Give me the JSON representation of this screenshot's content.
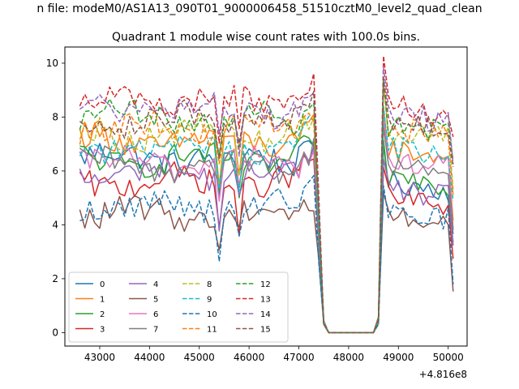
{
  "chart_data": {
    "type": "line",
    "suptitle": "n file: modeM0/AS1A13_090T01_9000006458_51510cztM0_level2_quad_clean",
    "title": "Quadrant 1 module wise count rates with 100.0s bins.",
    "xlabel": "",
    "ylabel": "",
    "x_offset_label": "+4.816e8",
    "xlim": [
      42300,
      50380
    ],
    "ylim": [
      -0.5,
      10.6
    ],
    "xticks": [
      43000,
      44000,
      45000,
      46000,
      47000,
      48000,
      49000,
      50000
    ],
    "xtick_labels": [
      "43000",
      "44000",
      "45000",
      "46000",
      "47000",
      "48000",
      "49000",
      "50000"
    ],
    "yticks": [
      0,
      2,
      4,
      6,
      8,
      10
    ],
    "ytick_labels": [
      "0",
      "2",
      "4",
      "6",
      "8",
      "10"
    ],
    "grid": false,
    "legend_position": "lower-left",
    "legend_columns": 4,
    "x_segments": [
      [
        42600,
        47500
      ],
      [
        47600,
        48500
      ],
      [
        48600,
        50100
      ]
    ],
    "bin_width": 100,
    "series": [
      {
        "name": "0",
        "color": "#1f77b4",
        "dash": "solid",
        "level_a": 6.5,
        "level_b": 5.6
      },
      {
        "name": "1",
        "color": "#ff7f0e",
        "dash": "solid",
        "level_a": 7.1,
        "level_b": 6.8
      },
      {
        "name": "2",
        "color": "#2ca02c",
        "dash": "solid",
        "level_a": 6.4,
        "level_b": 5.8
      },
      {
        "name": "3",
        "color": "#d62728",
        "dash": "solid",
        "level_a": 5.6,
        "level_b": 5.0
      },
      {
        "name": "4",
        "color": "#9467bd",
        "dash": "solid",
        "level_a": 5.9,
        "level_b": 5.3
      },
      {
        "name": "5",
        "color": "#8c564b",
        "dash": "solid",
        "level_a": 4.4,
        "level_b": 4.3
      },
      {
        "name": "6",
        "color": "#e377c2",
        "dash": "solid",
        "level_a": 6.3,
        "level_b": 6.4
      },
      {
        "name": "7",
        "color": "#7f7f7f",
        "dash": "solid",
        "level_a": 6.2,
        "level_b": 6.2
      },
      {
        "name": "8",
        "color": "#bcbd22",
        "dash": "dashed",
        "level_a": 7.4,
        "level_b": 7.5
      },
      {
        "name": "9",
        "color": "#17becf",
        "dash": "dashed",
        "level_a": 6.9,
        "level_b": 6.9
      },
      {
        "name": "10",
        "color": "#1f77b4",
        "dash": "dashed",
        "level_a": 4.7,
        "level_b": 4.5
      },
      {
        "name": "11",
        "color": "#ff7f0e",
        "dash": "dashed",
        "level_a": 7.6,
        "level_b": 7.6
      },
      {
        "name": "12",
        "color": "#2ca02c",
        "dash": "dashed",
        "level_a": 8.0,
        "level_b": 7.7
      },
      {
        "name": "13",
        "color": "#d62728",
        "dash": "dashed",
        "level_a": 8.6,
        "level_b": 8.4
      },
      {
        "name": "14",
        "color": "#9467bd",
        "dash": "dashed",
        "level_a": 8.3,
        "level_b": 8.1
      },
      {
        "name": "15",
        "color": "#8c564b",
        "dash": "dashed",
        "level_a": 7.9,
        "level_b": 7.8
      }
    ]
  }
}
